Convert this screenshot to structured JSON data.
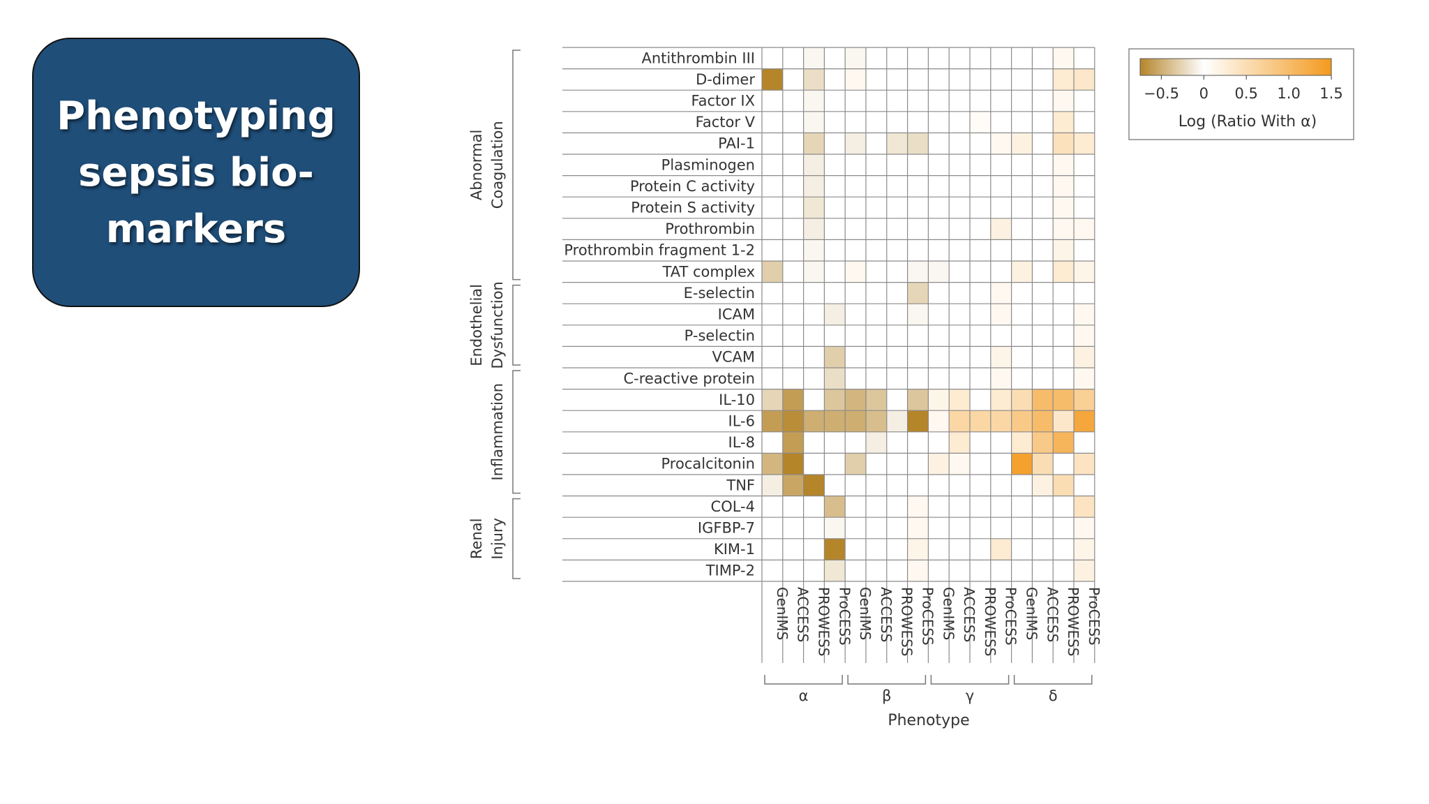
{
  "slide": {
    "title": "Phenotyping sepsis bio-markers"
  },
  "chart_data": {
    "type": "heatmap",
    "title": "",
    "xlabel": "Phenotype",
    "ylabel": "",
    "columns": [
      "GenIMS",
      "ACCESS",
      "PROWESS",
      "ProCESS",
      "GenIMS",
      "ACCESS",
      "PROWESS",
      "ProCESS",
      "GenIMS",
      "ACCESS",
      "PROWESS",
      "ProCESS",
      "GenIMS",
      "ACCESS",
      "PROWESS",
      "ProCESS"
    ],
    "phenotypes": [
      {
        "name": "α",
        "columns": [
          0,
          3
        ]
      },
      {
        "name": "β",
        "columns": [
          4,
          7
        ]
      },
      {
        "name": "γ",
        "columns": [
          8,
          11
        ]
      },
      {
        "name": "δ",
        "columns": [
          12,
          15
        ]
      }
    ],
    "rows": [
      "Antithrombin III",
      "D-dimer",
      "Factor IX",
      "Factor V",
      "PAI-1",
      "Plasminogen",
      "Protein C activity",
      "Protein S activity",
      "Prothrombin",
      "Prothrombin fragment 1-2",
      "TAT complex",
      "E-selectin",
      "ICAM",
      "P-selectin",
      "VCAM",
      "C-reactive protein",
      "IL-10",
      "IL-6",
      "IL-8",
      "Procalcitonin",
      "TNF",
      "COL-4",
      "IGFBP-7",
      "KIM-1",
      "TIMP-2"
    ],
    "groups": [
      {
        "name": [
          "Abnormal",
          "Coagulation"
        ],
        "rows": [
          0,
          10
        ]
      },
      {
        "name": [
          "Endothelial",
          "Dysfunction"
        ],
        "rows": [
          11,
          14
        ]
      },
      {
        "name": [
          "Inflammation"
        ],
        "rows": [
          15,
          20
        ]
      },
      {
        "name": [
          "Renal",
          "Injury"
        ],
        "rows": [
          21,
          24
        ]
      }
    ],
    "values": [
      [
        0,
        0,
        -0.05,
        0,
        -0.05,
        0,
        0,
        0,
        0,
        0,
        0,
        0,
        0,
        0,
        0.1,
        0
      ],
      [
        -0.8,
        0,
        -0.2,
        0,
        0.1,
        0,
        0,
        0,
        0,
        0,
        0,
        0,
        0,
        0,
        0.3,
        0.35
      ],
      [
        0,
        0,
        -0.05,
        0,
        0,
        0,
        0,
        0,
        0,
        0,
        0,
        0,
        0,
        0,
        0.1,
        0
      ],
      [
        0,
        0,
        -0.05,
        0,
        0,
        0,
        0,
        0,
        0,
        0,
        0.05,
        0,
        0,
        0,
        0.3,
        0
      ],
      [
        0,
        0,
        -0.25,
        0,
        -0.1,
        0,
        -0.15,
        -0.2,
        0,
        0,
        0,
        0.1,
        0.2,
        0,
        0.45,
        0.3
      ],
      [
        0,
        0,
        -0.1,
        0,
        0,
        0,
        0,
        0,
        0,
        0,
        0,
        0,
        0,
        0,
        0.1,
        0
      ],
      [
        0,
        0,
        -0.1,
        0,
        0,
        0,
        0,
        0,
        0,
        0,
        0,
        0,
        0,
        0,
        0.1,
        0
      ],
      [
        0,
        0,
        -0.15,
        0,
        0,
        0,
        0,
        0,
        0,
        0,
        0,
        0,
        0,
        0,
        0.1,
        0
      ],
      [
        0,
        0,
        -0.1,
        0,
        0,
        0,
        0,
        0,
        0,
        0,
        0,
        0.2,
        0,
        0,
        0.1,
        0.1
      ],
      [
        0,
        0,
        -0.05,
        0,
        0,
        0,
        0,
        0,
        0,
        0,
        0,
        0,
        0,
        0,
        0.15,
        0
      ],
      [
        -0.3,
        0,
        -0.05,
        0,
        0.1,
        0,
        0,
        -0.05,
        -0.05,
        0,
        0,
        0,
        0.2,
        0,
        0.3,
        0.15
      ],
      [
        0,
        0,
        0,
        0,
        0,
        0,
        0,
        -0.25,
        0,
        0,
        0,
        0.1,
        0,
        0,
        0,
        0
      ],
      [
        0,
        0,
        0,
        -0.1,
        0,
        0,
        0,
        -0.05,
        0,
        0,
        0,
        0.1,
        0,
        0,
        0,
        0.1
      ],
      [
        0,
        0,
        0,
        0,
        0,
        0,
        0,
        0,
        0,
        0,
        0,
        0,
        0,
        0,
        0,
        0.1
      ],
      [
        0,
        0,
        0,
        -0.3,
        0,
        0,
        0,
        0,
        0,
        0,
        0,
        0.15,
        0,
        0,
        0,
        0.2
      ],
      [
        0,
        0,
        0,
        -0.2,
        0,
        0,
        0,
        0,
        0,
        0,
        0,
        0.1,
        0,
        0,
        0,
        0.1
      ],
      [
        -0.25,
        -0.6,
        0,
        -0.35,
        -0.45,
        -0.35,
        0,
        -0.35,
        0.15,
        0.3,
        0,
        0.3,
        0.5,
        1.0,
        1.0,
        0.7
      ],
      [
        -0.6,
        -0.7,
        -0.5,
        -0.5,
        -0.5,
        -0.4,
        -0.1,
        -0.9,
        0.1,
        0.6,
        0.6,
        0.6,
        0.8,
        1.0,
        0.35,
        1.3
      ],
      [
        0,
        -0.6,
        0,
        0,
        0,
        -0.1,
        0,
        0,
        0,
        0.3,
        0,
        0,
        0.3,
        0.8,
        1.1,
        0
      ],
      [
        -0.45,
        -0.75,
        0,
        0,
        -0.3,
        0,
        0,
        0,
        0.2,
        0.1,
        0,
        0,
        1.4,
        0.5,
        0,
        0.4
      ],
      [
        -0.1,
        -0.55,
        -0.95,
        0,
        0,
        0,
        0,
        0,
        0,
        0,
        0,
        0,
        0,
        0.2,
        0.5,
        0
      ],
      [
        0,
        0,
        0,
        -0.4,
        0,
        0,
        0,
        0.1,
        0,
        0,
        0,
        0,
        0,
        0,
        0,
        0.4
      ],
      [
        0,
        0,
        0,
        -0.05,
        0,
        0,
        0,
        0.1,
        0,
        0,
        0,
        0,
        0,
        0,
        0,
        0.1
      ],
      [
        0,
        0,
        0,
        -0.9,
        0,
        0,
        0,
        0.15,
        0,
        0,
        0,
        0.3,
        0,
        0,
        0,
        0.15
      ],
      [
        0,
        0,
        0,
        -0.15,
        0,
        0,
        0,
        0.1,
        0,
        0,
        0,
        0,
        0,
        0,
        0,
        0.2
      ]
    ],
    "colorbar": {
      "label": "Log (Ratio With α)",
      "min": -0.75,
      "max": 1.5,
      "ticks": [
        -0.5,
        0,
        0.5,
        1.0,
        1.5
      ],
      "tick_labels": [
        "−0.5",
        "0",
        "0.5",
        "1.0",
        "1.5"
      ],
      "low_color": "#b5852a",
      "mid_color": "#ffffff",
      "high_color": "#f39a1f"
    }
  }
}
